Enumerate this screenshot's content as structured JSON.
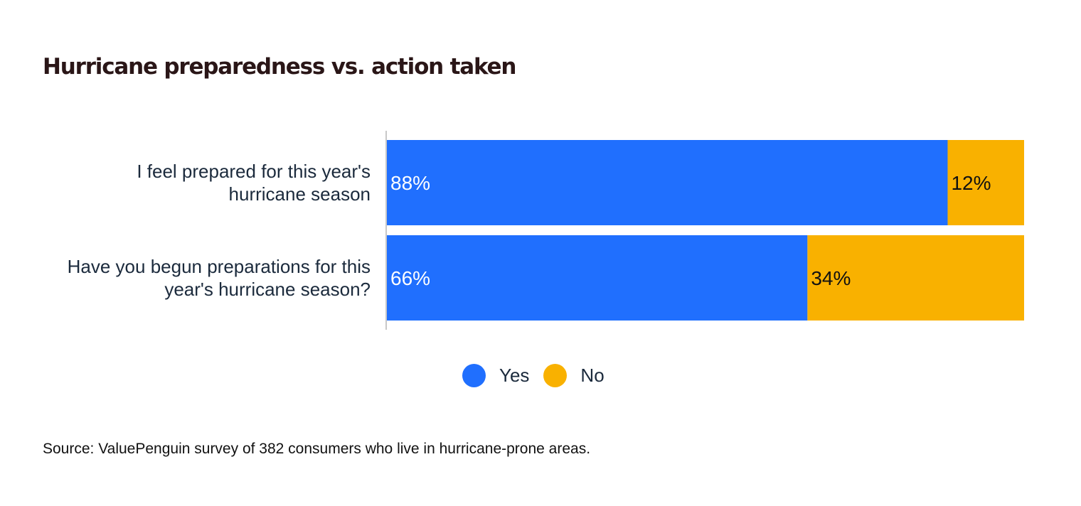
{
  "colors": {
    "yes": "#206ffe",
    "no": "#f9b100",
    "yes_text": "#ffffff",
    "no_text": "#111111"
  },
  "chart_data": {
    "type": "bar",
    "orientation": "horizontal",
    "stacked": true,
    "title": "Hurricane preparedness vs. action taken",
    "categories": [
      [
        "I feel prepared for this year's",
        "hurricane season"
      ],
      [
        "Have you begun preparations for this",
        "year's hurricane season?"
      ]
    ],
    "series": [
      {
        "name": "Yes",
        "values": [
          88,
          66
        ],
        "labels": [
          "88%",
          "66%"
        ]
      },
      {
        "name": "No",
        "values": [
          12,
          34
        ],
        "labels": [
          "12%",
          "34%"
        ]
      }
    ],
    "xlim": [
      0,
      100
    ],
    "unit": "%",
    "grid": false,
    "legend_position": "bottom-center"
  },
  "source": "Source: ValuePenguin survey of 382 consumers who live in hurricane-prone areas."
}
